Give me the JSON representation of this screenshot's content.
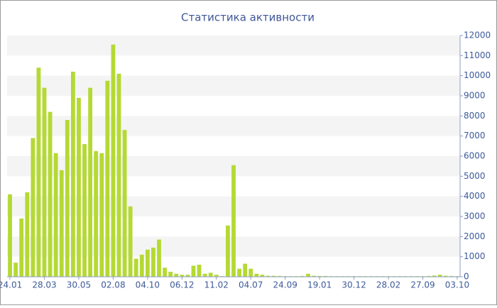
{
  "chart_data": {
    "type": "bar",
    "title": "Статистика активности",
    "categories": [
      "24.01",
      null,
      null,
      null,
      null,
      null,
      "28.03",
      null,
      null,
      null,
      null,
      null,
      "30.05",
      null,
      null,
      null,
      null,
      null,
      "02.08",
      null,
      null,
      null,
      null,
      null,
      "04.10",
      null,
      null,
      null,
      null,
      null,
      "06.12",
      null,
      null,
      null,
      null,
      null,
      "11.02",
      null,
      null,
      null,
      null,
      null,
      "04.07",
      null,
      null,
      null,
      null,
      null,
      "24.09",
      null,
      null,
      null,
      null,
      null,
      "19.01",
      null,
      null,
      null,
      null,
      null,
      "30.12",
      null,
      null,
      null,
      null,
      null,
      "28.02",
      null,
      null,
      null,
      null,
      null,
      "27.09",
      null,
      null,
      null,
      null,
      null,
      "03.10"
    ],
    "values": [
      4100,
      700,
      2900,
      4200,
      6900,
      10400,
      9400,
      8200,
      6150,
      5300,
      7800,
      10200,
      8900,
      6600,
      9400,
      6250,
      6150,
      9750,
      11550,
      10100,
      7300,
      3500,
      900,
      1100,
      1350,
      1450,
      1850,
      450,
      250,
      150,
      100,
      100,
      550,
      600,
      150,
      200,
      100,
      30,
      2550,
      5550,
      400,
      650,
      400,
      150,
      100,
      50,
      50,
      40,
      30,
      30,
      30,
      40,
      150,
      50,
      40,
      40,
      30,
      30,
      30,
      30,
      30,
      30,
      30,
      30,
      30,
      30,
      30,
      30,
      30,
      30,
      30,
      30,
      30,
      40,
      60,
      100,
      50,
      40,
      30
    ],
    "color": "#b5d934",
    "ylim": [
      0,
      12000
    ],
    "yticks": [
      0,
      1000,
      2000,
      3000,
      4000,
      5000,
      6000,
      7000,
      8000,
      9000,
      10000,
      11000,
      12000
    ],
    "grid": true
  }
}
